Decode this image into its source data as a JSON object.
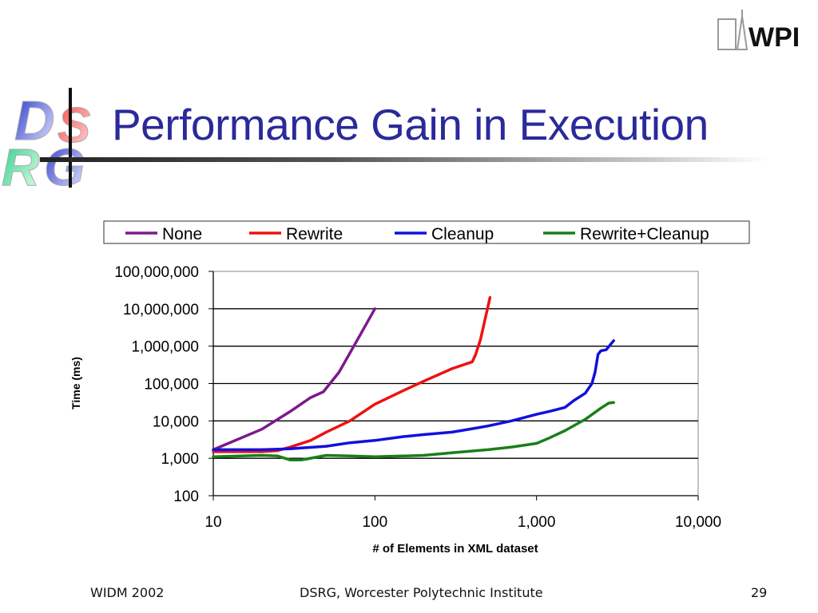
{
  "slide": {
    "title": "Performance Gain in Execution",
    "logo_left": "DSRG",
    "logo_right": "WPI",
    "footer": {
      "left": "WIDM 2002",
      "center": "DSRG, Worcester Polytechnic Institute",
      "page": "29"
    }
  },
  "chart_data": {
    "type": "line",
    "title": "",
    "xlabel": "# of Elements in XML dataset",
    "ylabel": "Time (ms)",
    "xscale": "log",
    "yscale": "log",
    "xlim": [
      10,
      10000
    ],
    "ylim": [
      100,
      100000000
    ],
    "xticks": [
      "10",
      "100",
      "1,000",
      "10,000"
    ],
    "yticks": [
      "100",
      "1,000",
      "10,000",
      "100,000",
      "1,000,000",
      "10,000,000",
      "100,000,000"
    ],
    "grid": "horizontal",
    "legend": "top",
    "series": [
      {
        "name": "None",
        "color": "#7b1a8c",
        "x": [
          10,
          20,
          30,
          40,
          48,
          60,
          80,
          100
        ],
        "y": [
          1700,
          6000,
          18000,
          42000,
          60000,
          200000,
          1800000,
          10000000
        ]
      },
      {
        "name": "Rewrite",
        "color": "#ee1111",
        "x": [
          10,
          20,
          25,
          30,
          40,
          50,
          70,
          100,
          150,
          200,
          300,
          400,
          420,
          450,
          515
        ],
        "y": [
          1500,
          1500,
          1600,
          2000,
          3000,
          5000,
          10000,
          28000,
          65000,
          115000,
          250000,
          380000,
          600000,
          1500000,
          20000000
        ]
      },
      {
        "name": "Cleanup",
        "color": "#1111dd",
        "x": [
          10,
          20,
          30,
          50,
          70,
          100,
          150,
          200,
          300,
          400,
          500,
          700,
          1000,
          1200,
          1500,
          1700,
          2000,
          2200,
          2300,
          2400,
          2500,
          2700,
          3000
        ],
        "y": [
          1700,
          1700,
          1800,
          2100,
          2600,
          3000,
          3800,
          4300,
          5000,
          6200,
          7300,
          10000,
          15000,
          18000,
          23000,
          35000,
          55000,
          100000,
          200000,
          600000,
          750000,
          800000,
          1400000
        ]
      },
      {
        "name": "Rewrite+Cleanup",
        "color": "#1a7f1a",
        "x": [
          10,
          20,
          25,
          30,
          35,
          50,
          70,
          100,
          150,
          200,
          300,
          500,
          700,
          1000,
          1200,
          1500,
          2000,
          2500,
          2800,
          3000
        ],
        "y": [
          1100,
          1200,
          1150,
          900,
          900,
          1200,
          1150,
          1100,
          1150,
          1200,
          1400,
          1700,
          2000,
          2500,
          3500,
          5500,
          11000,
          22000,
          30000,
          31000
        ]
      }
    ]
  }
}
